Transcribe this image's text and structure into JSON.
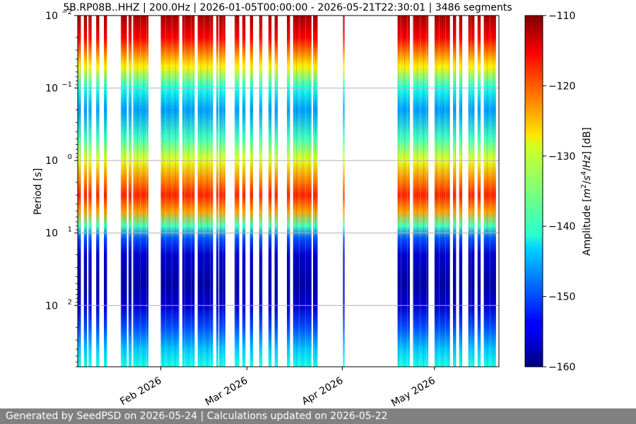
{
  "chart_data": {
    "type": "heatmap",
    "title": "5B.RP08B..HHZ | 200.0Hz | 2026-01-05T00:00:00 - 2026-05-21T22:30:01 | 3486 segments",
    "ylabel": "Period [s]",
    "y_scale": "log",
    "y_inverted": true,
    "ylim": [
      0.01,
      700
    ],
    "y_ticks": [
      {
        "value": 0.01,
        "base": "10",
        "exp": "−2"
      },
      {
        "value": 0.1,
        "base": "10",
        "exp": "−1"
      },
      {
        "value": 1,
        "base": "10",
        "exp": "0"
      },
      {
        "value": 10,
        "base": "10",
        "exp": "1"
      },
      {
        "value": 100,
        "base": "10",
        "exp": "2"
      }
    ],
    "x_range": [
      "2026-01-05",
      "2026-05-21"
    ],
    "x_ticks": [
      {
        "date": "2026-02-01",
        "label": "Feb 2026"
      },
      {
        "date": "2026-03-01",
        "label": "Mar 2026"
      },
      {
        "date": "2026-04-01",
        "label": "Apr 2026"
      },
      {
        "date": "2026-05-01",
        "label": "May 2026"
      }
    ],
    "grid": true,
    "colorbar": {
      "label": "Amplitude [m²/s⁴/Hz] [dB]",
      "label_parts": [
        "Amplitude [",
        "m",
        "2",
        "/",
        "s",
        "4",
        "/",
        "Hz",
        "] [dB]"
      ],
      "min": -160,
      "max": -110,
      "ticks": [
        -110,
        -120,
        -130,
        -140,
        -150,
        -160
      ],
      "tick_labels": [
        "−110",
        "−120",
        "−130",
        "−140",
        "−150",
        "−160"
      ],
      "colormap": "jet"
    },
    "data_intervals": [
      [
        "2026-01-05",
        "2026-01-06"
      ],
      [
        "2026-01-07",
        "2026-01-08"
      ],
      [
        "2026-01-08T12:00",
        "2026-01-09T12:00"
      ],
      [
        "2026-01-11",
        "2026-01-12"
      ],
      [
        "2026-01-13T12:00",
        "2026-01-14T12:00"
      ],
      [
        "2026-01-19",
        "2026-01-21"
      ],
      [
        "2026-01-21T12:00",
        "2026-01-22T12:00"
      ],
      [
        "2026-01-23",
        "2026-01-28"
      ],
      [
        "2026-02-01",
        "2026-02-07"
      ],
      [
        "2026-02-08",
        "2026-02-12"
      ],
      [
        "2026-02-13",
        "2026-02-18"
      ],
      [
        "2026-02-19",
        "2026-02-19T18:00"
      ],
      [
        "2026-02-20",
        "2026-02-22"
      ],
      [
        "2026-02-25",
        "2026-02-26T12:00"
      ],
      [
        "2026-02-27T12:00",
        "2026-02-28T12:00"
      ],
      [
        "2026-03-02",
        "2026-03-03"
      ],
      [
        "2026-03-05",
        "2026-03-06"
      ],
      [
        "2026-03-08",
        "2026-03-09"
      ],
      [
        "2026-03-10",
        "2026-03-11"
      ],
      [
        "2026-03-14",
        "2026-03-15"
      ],
      [
        "2026-03-16",
        "2026-03-22"
      ],
      [
        "2026-03-22T12:00",
        "2026-03-24"
      ],
      [
        "2026-04-01T06:00",
        "2026-04-01T18:00"
      ],
      [
        "2026-04-19",
        "2026-04-23"
      ],
      [
        "2026-04-24",
        "2026-04-29"
      ],
      [
        "2026-05-01",
        "2026-05-06"
      ],
      [
        "2026-05-07",
        "2026-05-08"
      ],
      [
        "2026-05-09",
        "2026-05-10"
      ],
      [
        "2026-05-12",
        "2026-05-14"
      ],
      [
        "2026-05-15",
        "2026-05-16"
      ],
      [
        "2026-05-17",
        "2026-05-21"
      ]
    ],
    "spectrum_profile": [
      {
        "period": 0.01,
        "db": -112
      },
      {
        "period": 0.02,
        "db": -116
      },
      {
        "period": 0.05,
        "db": -128
      },
      {
        "period": 0.1,
        "db": -140
      },
      {
        "period": 0.2,
        "db": -146
      },
      {
        "period": 0.5,
        "db": -138
      },
      {
        "period": 1,
        "db": -130
      },
      {
        "period": 2,
        "db": -122
      },
      {
        "period": 3,
        "db": -118
      },
      {
        "period": 5,
        "db": -124
      },
      {
        "period": 8,
        "db": -138
      },
      {
        "period": 12,
        "db": -150
      },
      {
        "period": 20,
        "db": -156
      },
      {
        "period": 50,
        "db": -158
      },
      {
        "period": 100,
        "db": -156
      },
      {
        "period": 200,
        "db": -150
      },
      {
        "period": 400,
        "db": -144
      },
      {
        "period": 700,
        "db": -140
      }
    ]
  },
  "footer": {
    "text": "Generated by SeedPSD on 2026-05-24 | Calculations updated on 2026-05-22"
  }
}
